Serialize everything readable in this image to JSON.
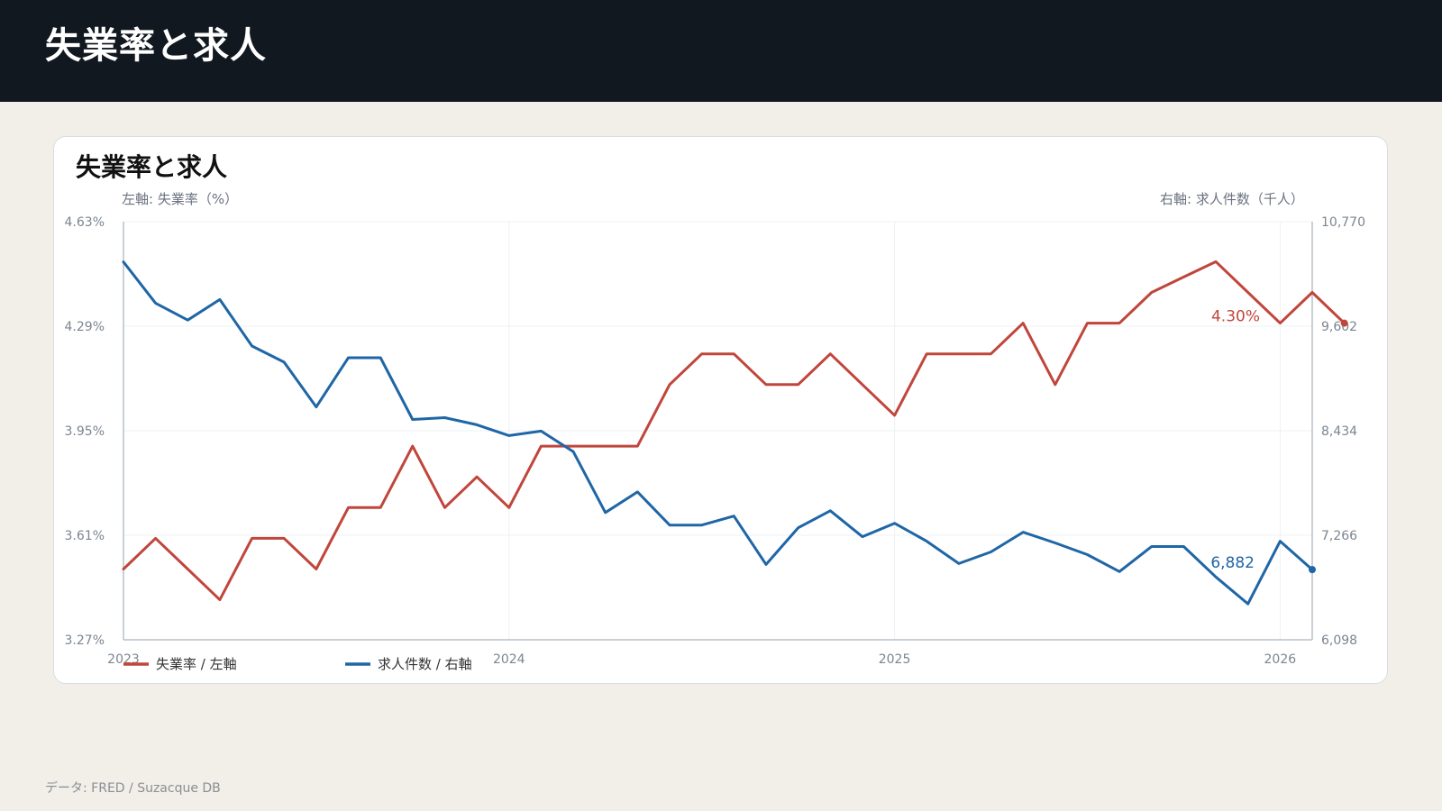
{
  "header": {
    "title": "失業率と求人"
  },
  "card": {
    "title": "失業率と求人"
  },
  "footer": {
    "source": "データ: FRED / Suzacque DB"
  },
  "colors": {
    "unemployment": "#c0463c",
    "openings": "#1f66a6",
    "header_bg": "#111820",
    "page_bg": "#f2eee8"
  },
  "chart_data": {
    "type": "line",
    "title": "失業率と求人",
    "left_axis": {
      "label": "左軸: 失業率（%）",
      "ticks": [
        "4.63%",
        "4.29%",
        "3.95%",
        "3.61%",
        "3.27%"
      ],
      "range": [
        3.27,
        4.63
      ]
    },
    "right_axis": {
      "label": "右軸: 求人件数（千人）",
      "ticks": [
        "10,770",
        "9,602",
        "8,434",
        "7,266",
        "6,098"
      ],
      "range": [
        6098,
        10770
      ]
    },
    "x_ticks": [
      "2023",
      "2024",
      "2025",
      "2026"
    ],
    "x_range": [
      "2023-01",
      "2026-02"
    ],
    "grid": true,
    "legend_position": "bottom-left",
    "series": [
      {
        "name": "失業率 / 左軸",
        "axis": "left",
        "color": "#c0463c",
        "end_label": "4.30%",
        "points": [
          [
            "2023-01",
            3.5
          ],
          [
            "2023-02",
            3.6
          ],
          [
            "2023-03",
            3.5
          ],
          [
            "2023-04",
            3.4
          ],
          [
            "2023-05",
            3.6
          ],
          [
            "2023-06",
            3.6
          ],
          [
            "2023-07",
            3.5
          ],
          [
            "2023-08",
            3.7
          ],
          [
            "2023-09",
            3.7
          ],
          [
            "2023-10",
            3.9
          ],
          [
            "2023-11",
            3.7
          ],
          [
            "2023-12",
            3.8
          ],
          [
            "2024-01",
            3.7
          ],
          [
            "2024-02",
            3.9
          ],
          [
            "2024-03",
            3.9
          ],
          [
            "2024-04",
            3.9
          ],
          [
            "2024-05",
            3.9
          ],
          [
            "2024-06",
            4.1
          ],
          [
            "2024-07",
            4.2
          ],
          [
            "2024-08",
            4.2
          ],
          [
            "2024-09",
            4.1
          ],
          [
            "2024-10",
            4.1
          ],
          [
            "2024-11",
            4.2
          ],
          [
            "2024-12",
            4.1
          ],
          [
            "2025-01",
            4.0
          ],
          [
            "2025-02",
            4.2
          ],
          [
            "2025-03",
            4.2
          ],
          [
            "2025-04",
            4.2
          ],
          [
            "2025-05",
            4.3
          ],
          [
            "2025-06",
            4.1
          ],
          [
            "2025-07",
            4.3
          ],
          [
            "2025-08",
            4.3
          ],
          [
            "2025-09",
            4.4
          ],
          [
            "2025-10",
            4.45
          ],
          [
            "2025-11",
            4.5
          ],
          [
            "2025-12",
            4.4
          ],
          [
            "2026-01",
            4.3
          ],
          [
            "2026-02",
            4.4
          ],
          [
            "2026-03",
            4.3
          ]
        ]
      },
      {
        "name": "求人件数 / 右軸",
        "axis": "right",
        "color": "#1f66a6",
        "end_label": "6,882",
        "points": [
          [
            "2023-01",
            10320
          ],
          [
            "2023-02",
            9860
          ],
          [
            "2023-03",
            9670
          ],
          [
            "2023-04",
            9900
          ],
          [
            "2023-05",
            9380
          ],
          [
            "2023-06",
            9200
          ],
          [
            "2023-07",
            8700
          ],
          [
            "2023-08",
            9250
          ],
          [
            "2023-09",
            9250
          ],
          [
            "2023-10",
            8560
          ],
          [
            "2023-11",
            8580
          ],
          [
            "2023-12",
            8500
          ],
          [
            "2024-01",
            8380
          ],
          [
            "2024-02",
            8430
          ],
          [
            "2024-03",
            8200
          ],
          [
            "2024-04",
            7520
          ],
          [
            "2024-05",
            7750
          ],
          [
            "2024-06",
            7380
          ],
          [
            "2024-07",
            7380
          ],
          [
            "2024-08",
            7480
          ],
          [
            "2024-09",
            6940
          ],
          [
            "2024-10",
            7350
          ],
          [
            "2024-11",
            7540
          ],
          [
            "2024-12",
            7250
          ],
          [
            "2025-01",
            7400
          ],
          [
            "2025-02",
            7200
          ],
          [
            "2025-03",
            6950
          ],
          [
            "2025-04",
            7080
          ],
          [
            "2025-05",
            7300
          ],
          [
            "2025-06",
            7180
          ],
          [
            "2025-07",
            7050
          ],
          [
            "2025-08",
            6860
          ],
          [
            "2025-09",
            7140
          ],
          [
            "2025-10",
            7140
          ],
          [
            "2025-11",
            6800
          ],
          [
            "2025-12",
            6500
          ],
          [
            "2026-01",
            7200
          ],
          [
            "2026-02",
            6882
          ]
        ]
      }
    ]
  }
}
